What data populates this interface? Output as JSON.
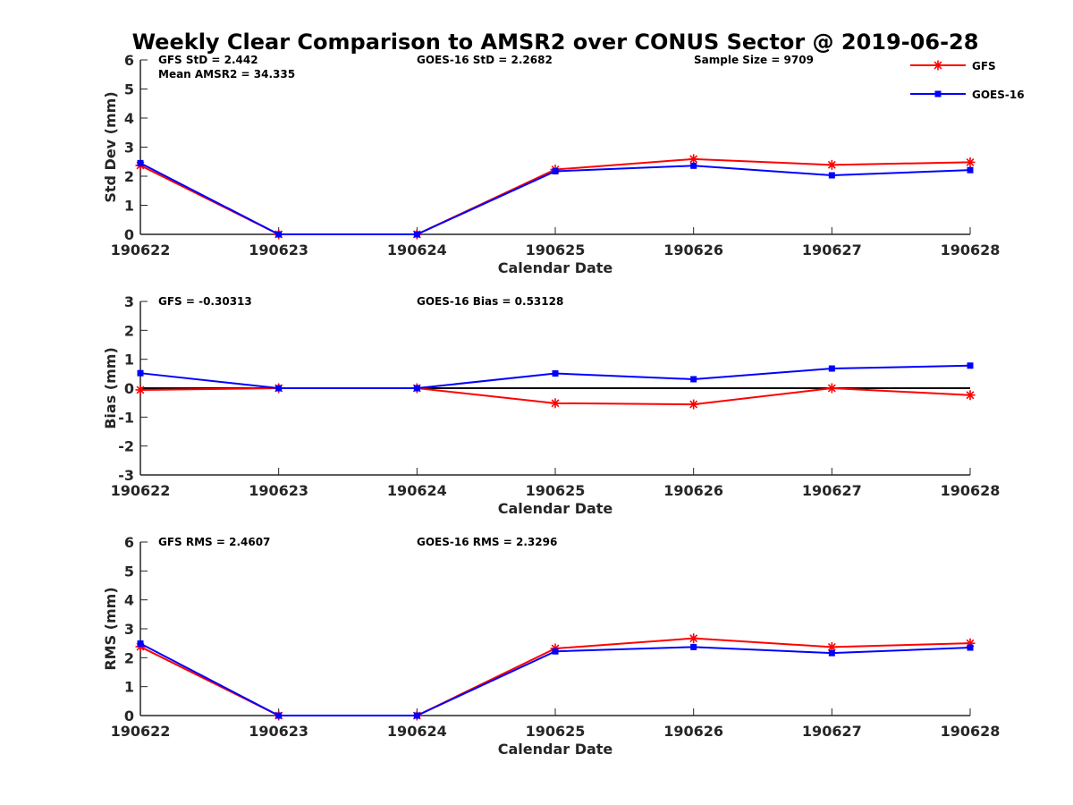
{
  "title": "Weekly Clear Comparison to AMSR2 over CONUS Sector @ 2019-06-28",
  "legend": {
    "placement": "top-right",
    "entries": [
      {
        "name": "GFS",
        "color": "#ff0000",
        "marker": "asterisk"
      },
      {
        "name": "GOES-16",
        "color": "#0000ff",
        "marker": "square"
      }
    ]
  },
  "chart_data": [
    {
      "type": "line",
      "xlabel": "Calendar Date",
      "ylabel": "Std Dev (mm)",
      "ylim": [
        0,
        6
      ],
      "yticks": [
        0,
        1,
        2,
        3,
        4,
        5,
        6
      ],
      "categories": [
        "190622",
        "190623",
        "190624",
        "190625",
        "190626",
        "190627",
        "190628"
      ],
      "reference_line": null,
      "annotations": {
        "left": "GFS StD = 2.442",
        "left2": "Mean AMSR2 = 34.335",
        "middle": "GOES-16 StD = 2.2682",
        "right": "Sample Size = 9709"
      },
      "series": [
        {
          "name": "GFS",
          "values": [
            2.37,
            0.0,
            0.0,
            2.23,
            2.59,
            2.39,
            2.48
          ]
        },
        {
          "name": "GOES-16",
          "values": [
            2.45,
            0.0,
            0.0,
            2.17,
            2.36,
            2.03,
            2.21
          ]
        }
      ]
    },
    {
      "type": "line",
      "xlabel": "Calendar Date",
      "ylabel": "Bias (mm)",
      "ylim": [
        -3,
        3
      ],
      "yticks": [
        -3,
        -2,
        -1,
        0,
        1,
        2,
        3
      ],
      "categories": [
        "190622",
        "190623",
        "190624",
        "190625",
        "190626",
        "190627",
        "190628"
      ],
      "reference_line": 0,
      "annotations": {
        "left": "GFS = -0.30313",
        "left2": "",
        "middle": "GOES-16 Bias  = 0.53128",
        "right": ""
      },
      "series": [
        {
          "name": "GFS",
          "values": [
            -0.06,
            0.0,
            0.0,
            -0.52,
            -0.56,
            0.0,
            -0.24
          ]
        },
        {
          "name": "GOES-16",
          "values": [
            0.52,
            0.0,
            0.0,
            0.51,
            0.31,
            0.68,
            0.78
          ]
        }
      ]
    },
    {
      "type": "line",
      "xlabel": "Calendar Date",
      "ylabel": "RMS (mm)",
      "ylim": [
        0,
        6
      ],
      "yticks": [
        0,
        1,
        2,
        3,
        4,
        5,
        6
      ],
      "categories": [
        "190622",
        "190623",
        "190624",
        "190625",
        "190626",
        "190627",
        "190628"
      ],
      "reference_line": null,
      "annotations": {
        "left": "GFS RMS = 2.4607",
        "left2": "",
        "middle": "GOES-16 RMS = 2.3296",
        "right": ""
      },
      "series": [
        {
          "name": "GFS",
          "values": [
            2.38,
            0.0,
            0.0,
            2.32,
            2.67,
            2.37,
            2.5
          ]
        },
        {
          "name": "GOES-16",
          "values": [
            2.49,
            0.0,
            0.0,
            2.22,
            2.37,
            2.16,
            2.35
          ]
        }
      ]
    }
  ]
}
